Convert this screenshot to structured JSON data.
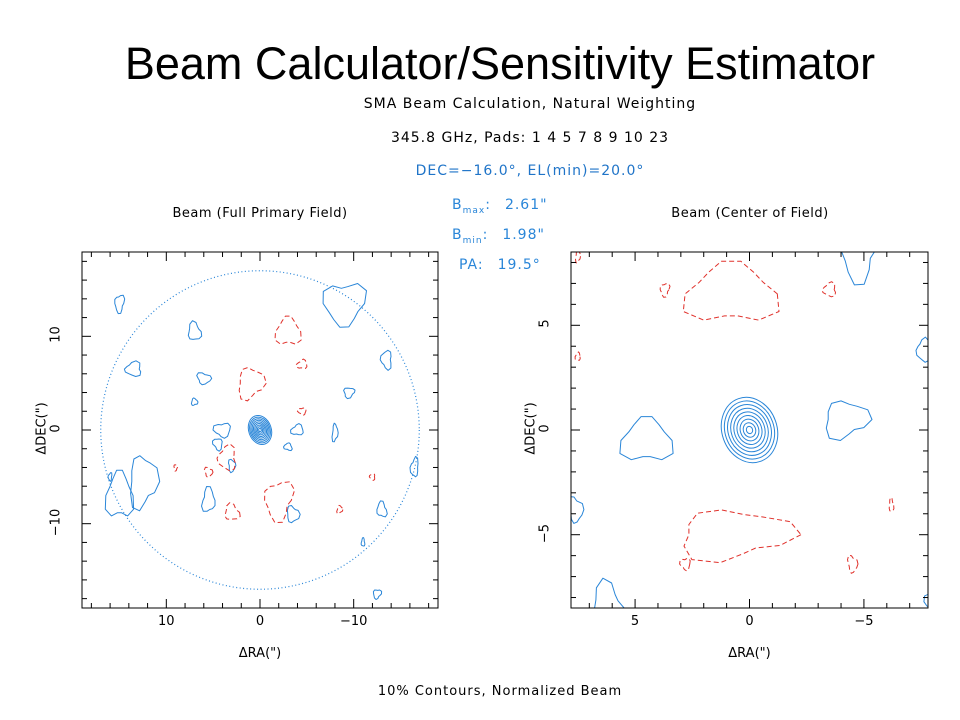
{
  "title": "Beam Calculator/Sensitivity Estimator",
  "header": {
    "line1": "SMA Beam Calculation, Natural Weighting",
    "line2": "345.8 GHz,    Pads:  1   4   5   7   8   9  10  23",
    "line3": "DEC=−16.0°, EL(min)=20.0°"
  },
  "beam": {
    "bmax_label": "B",
    "bmax_sub": "max",
    "bmax_value": "2.61\"",
    "bmin_label": "B",
    "bmin_sub": "min",
    "bmin_value": "1.98\"",
    "pa_label": "PA:",
    "pa_value": "19.5°"
  },
  "footer": "10% Contours, Normalized Beam",
  "colors": {
    "positive": "#2a86d8",
    "negative": "#e0312b",
    "frame": "#000000"
  },
  "chart_data": [
    {
      "type": "contour",
      "title": "Beam (Full Primary Field)",
      "xlabel": "ΔRA(\")",
      "ylabel": "ΔDEC(\")",
      "xlim": [
        19,
        -19
      ],
      "ylim": [
        -19,
        19
      ],
      "xticks": [
        10,
        0,
        -10
      ],
      "xtick_labels": [
        "10",
        "0",
        "−10"
      ],
      "yticks": [
        10,
        0,
        -10
      ],
      "ytick_labels": [
        "10",
        "0",
        "−10"
      ],
      "primary_field_radius": 17,
      "beam": {
        "bmaj": 2.61,
        "bmin": 1.98,
        "pa": 19.5,
        "levels": 9
      },
      "positive_blobs": [
        [
          15,
          -7,
          1.3,
          2.6
        ],
        [
          12.5,
          -5.5,
          1.4,
          2.8
        ],
        [
          15,
          13.5,
          0.5,
          0.9
        ],
        [
          13.5,
          6.5,
          0.9,
          0.7
        ],
        [
          7,
          10.5,
          0.7,
          0.9
        ],
        [
          6,
          5.5,
          0.7,
          0.6
        ],
        [
          4,
          0,
          0.8,
          0.8
        ],
        [
          -4,
          0,
          0.6,
          0.6
        ],
        [
          -8,
          -0.3,
          0.3,
          0.9
        ],
        [
          -9.5,
          4,
          0.6,
          0.5
        ],
        [
          -13.5,
          7.5,
          0.6,
          0.9
        ],
        [
          -13,
          -8.5,
          0.5,
          0.8
        ],
        [
          -3.5,
          -9,
          0.6,
          0.9
        ],
        [
          -9,
          13.5,
          2.0,
          2.4
        ],
        [
          -16.5,
          -4,
          0.4,
          1.0
        ],
        [
          5.5,
          -7.5,
          0.7,
          1.2
        ],
        [
          3,
          -3.8,
          0.4,
          0.6
        ],
        [
          4.5,
          -1.5,
          0.5,
          0.6
        ],
        [
          -3,
          -1.8,
          0.4,
          0.4
        ],
        [
          7,
          3,
          0.3,
          0.4
        ],
        [
          -12.5,
          -17.5,
          0.4,
          0.5
        ],
        [
          16,
          -5,
          0.2,
          0.4
        ],
        [
          -11,
          -12,
          0.2,
          0.4
        ]
      ],
      "negative_blobs": [
        [
          -3,
          10.5,
          1.2,
          1.6
        ],
        [
          1,
          5,
          1.3,
          1.7
        ],
        [
          -2,
          -7.5,
          1.5,
          2
        ],
        [
          3.5,
          -3,
          1.0,
          1.2
        ],
        [
          3,
          -8.8,
          0.8,
          0.8
        ],
        [
          5.5,
          -4.5,
          0.4,
          0.5
        ],
        [
          -4.5,
          2,
          0.4,
          0.4
        ],
        [
          -4.5,
          7,
          0.5,
          0.5
        ],
        [
          -8.5,
          -8.5,
          0.3,
          0.4
        ],
        [
          9,
          -4,
          0.2,
          0.3
        ],
        [
          -12,
          -5,
          0.3,
          0.3
        ]
      ]
    },
    {
      "type": "contour",
      "title": "Beam (Center of Field)",
      "xlabel": "ΔRA(\")",
      "ylabel": "ΔDEC(\")",
      "xlim": [
        7.8,
        -7.8
      ],
      "ylim": [
        -8.5,
        8.5
      ],
      "xticks": [
        5,
        0,
        -5
      ],
      "xtick_labels": [
        "5",
        "0",
        "−5"
      ],
      "yticks": [
        5,
        0,
        -5
      ],
      "ytick_labels": [
        "5",
        "0",
        "−5"
      ],
      "beam": {
        "bmaj": 2.61,
        "bmin": 1.98,
        "pa": 19.5,
        "levels": 9
      },
      "positive_blobs": [
        [
          4.5,
          -0.5,
          1.0,
          1.1
        ],
        [
          -4.2,
          0.5,
          0.9,
          0.9
        ],
        [
          -4.8,
          8.6,
          0.8,
          1.4
        ],
        [
          -7.6,
          3.8,
          0.3,
          0.5
        ],
        [
          6.2,
          -8.5,
          0.7,
          1.1
        ],
        [
          7.6,
          -3.8,
          0.3,
          0.6
        ],
        [
          -8,
          -8.2,
          0.3,
          0.5
        ]
      ],
      "negative_blobs": [
        [
          0.8,
          6.5,
          1.8,
          1.5
        ],
        [
          0.7,
          -5,
          2.3,
          1.2
        ],
        [
          3.7,
          6.7,
          0.2,
          0.3
        ],
        [
          -3.5,
          6.7,
          0.3,
          0.3
        ],
        [
          -6.2,
          -3.6,
          0.1,
          0.3
        ],
        [
          -4.5,
          -6.4,
          0.2,
          0.4
        ],
        [
          2.8,
          -6.4,
          0.2,
          0.3
        ],
        [
          7.5,
          3.5,
          0.1,
          0.2
        ],
        [
          7.5,
          8.3,
          0.1,
          0.3
        ]
      ]
    }
  ]
}
